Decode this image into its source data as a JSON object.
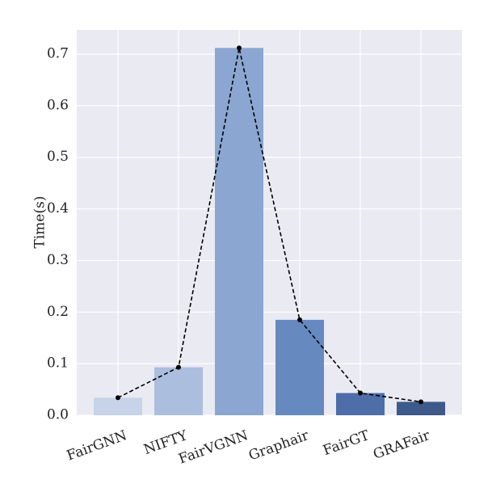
{
  "chart_data": {
    "type": "bar",
    "ylabel": "Time(s)",
    "categories": [
      "FairGNN",
      "NIFTY",
      "FairVGNN",
      "Graphair",
      "FairGT",
      "GRAFair"
    ],
    "values": [
      0.034,
      0.093,
      0.712,
      0.185,
      0.043,
      0.026
    ],
    "colors": [
      "#c6d3e8",
      "#abbedd",
      "#8aa6d1",
      "#6689c0",
      "#4d6ea8",
      "#3d5a8a"
    ],
    "overlay_line": true,
    "line_color": "#000000",
    "line_style": "dashed",
    "ylim": [
      0,
      0.747
    ],
    "yticks": [
      {
        "value": 0,
        "label": "0.0"
      },
      0.1,
      0.2,
      0.3,
      0.4,
      0.5,
      0.6,
      0.7
    ],
    "grid": true
  }
}
